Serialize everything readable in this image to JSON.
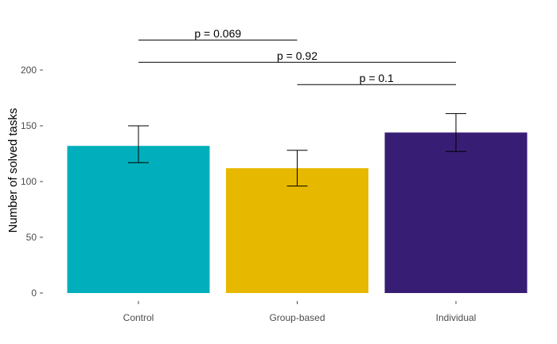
{
  "chart_data": {
    "type": "bar",
    "title": "",
    "xlabel": "",
    "ylabel": "Number of solved tasks",
    "categories": [
      "Control",
      "Group-based",
      "Individual"
    ],
    "values": [
      132,
      112,
      144
    ],
    "error_bars": [
      {
        "low": 117,
        "high": 150
      },
      {
        "low": 96,
        "high": 128
      },
      {
        "low": 127,
        "high": 161
      }
    ],
    "colors": [
      "#00AFBB",
      "#E7B800",
      "#371E74"
    ],
    "ylim": [
      0,
      220
    ],
    "yticks": [
      0,
      50,
      100,
      150,
      200
    ],
    "grid": false,
    "legend": "none",
    "comparisons": [
      {
        "from": "Control",
        "to": "Group-based",
        "label": "p = 0.069",
        "y": 227
      },
      {
        "from": "Control",
        "to": "Individual",
        "label": "p = 0.92",
        "y": 207
      },
      {
        "from": "Group-based",
        "to": "Individual",
        "label": "p = 0.1",
        "y": 187
      }
    ]
  }
}
